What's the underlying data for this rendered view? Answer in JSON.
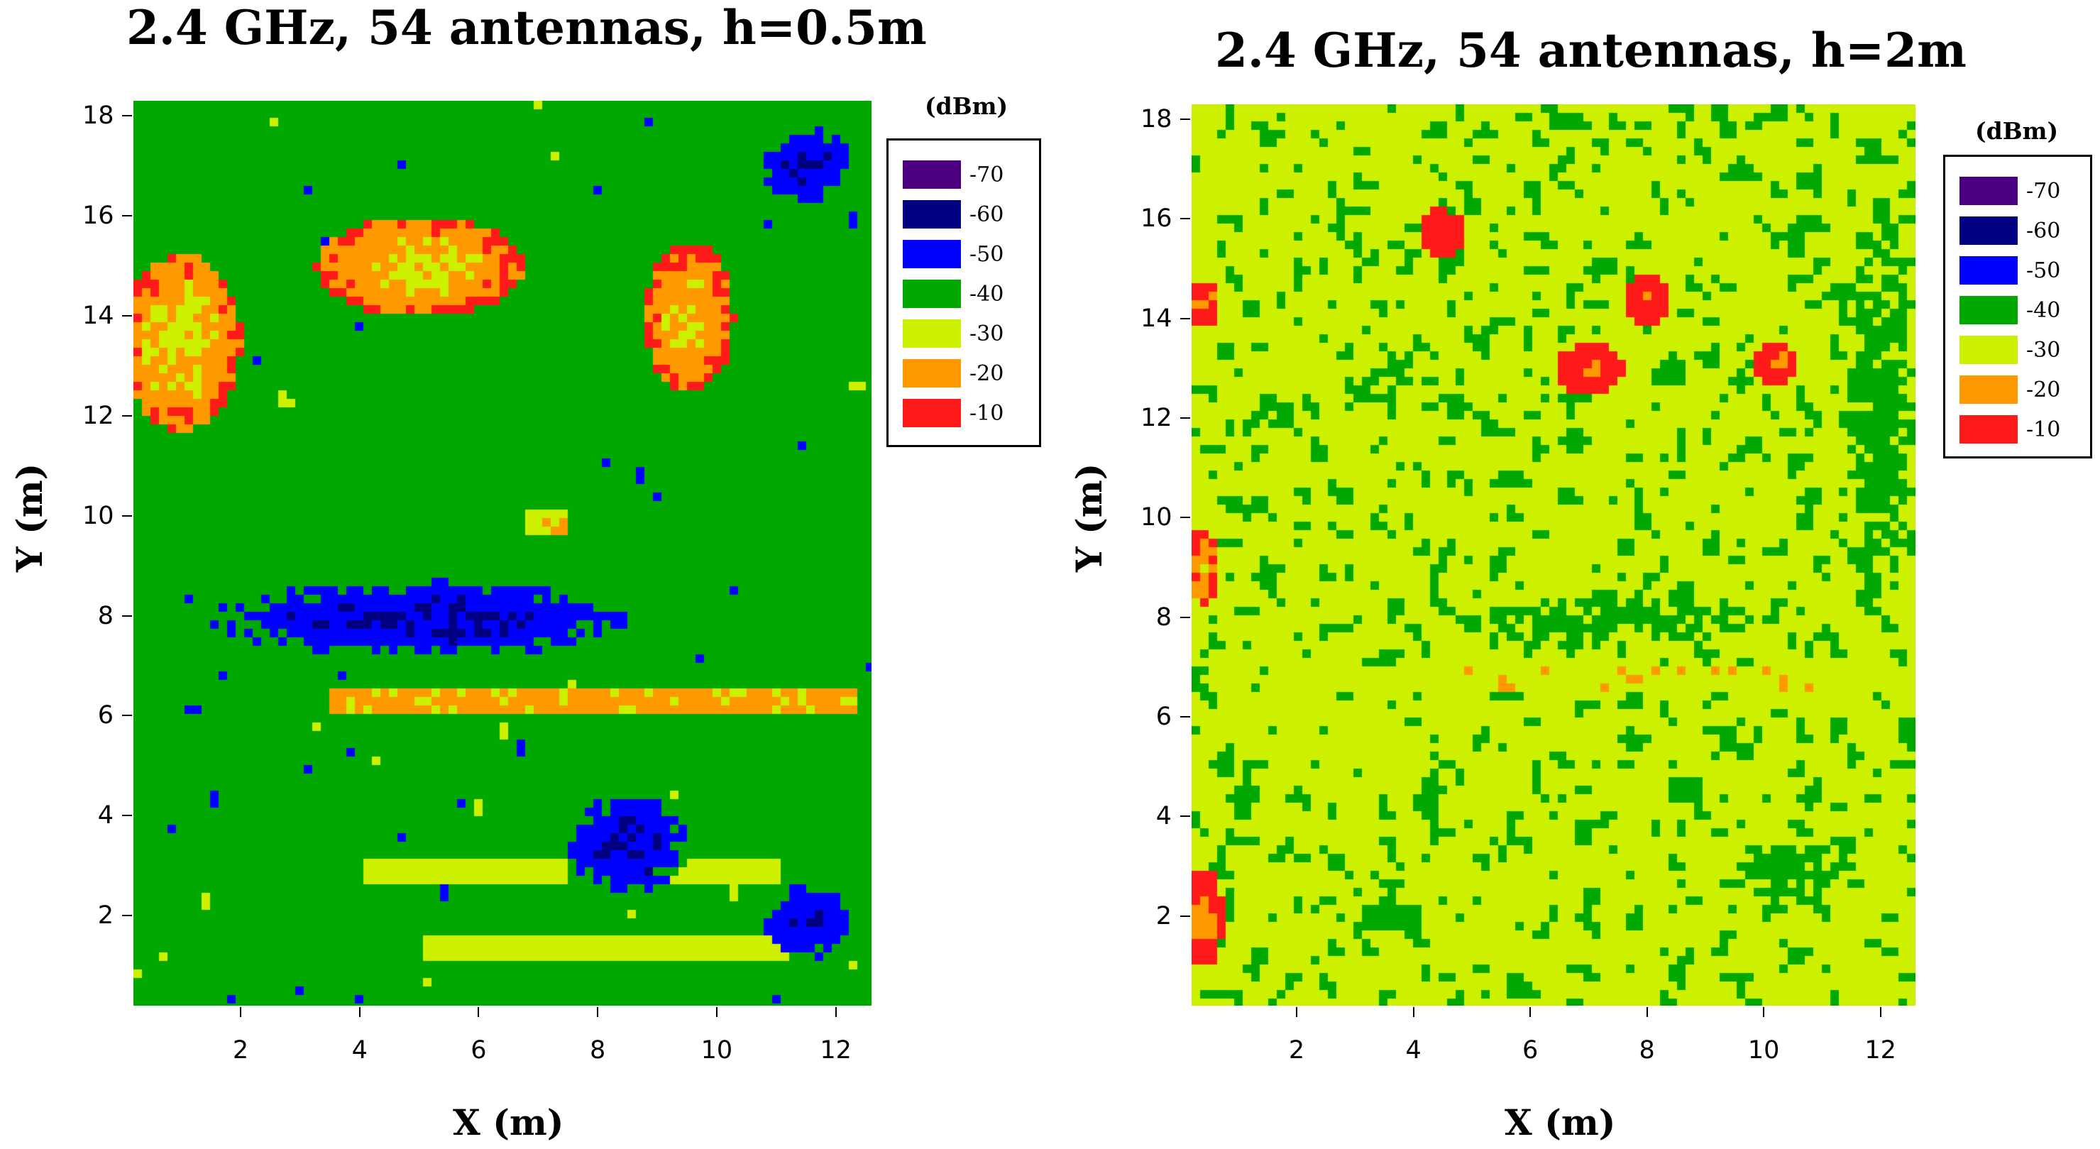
{
  "chart_data": [
    {
      "type": "heatmap",
      "title": "2.4 GHz, 54 antennas, h=0.5m",
      "xlabel": "X (m)",
      "ylabel": "Y (m)",
      "xlim": [
        0.2,
        12.6
      ],
      "ylim": [
        0.2,
        18.3
      ],
      "xticks": [
        "2",
        "4",
        "6",
        "8",
        "10",
        "12"
      ],
      "yticks": [
        "2",
        "4",
        "6",
        "8",
        "10",
        "12",
        "14",
        "16",
        "18"
      ],
      "legend_unit": "(dBm)",
      "legend_levels": [
        {
          "label": "-70",
          "color": "#4b0082"
        },
        {
          "label": "-60",
          "color": "#000080"
        },
        {
          "label": "-50",
          "color": "#0000ff"
        },
        {
          "label": "-40",
          "color": "#00a800"
        },
        {
          "label": "-30",
          "color": "#ccf000"
        },
        {
          "label": "-20",
          "color": "#ff9900"
        },
        {
          "label": "-10",
          "color": "#ff1a1a"
        }
      ],
      "field_description_dbm": {
        "base": -40,
        "hot_lines": [
          {
            "y": 6.4,
            "x_range": [
              3.5,
              12.3
            ],
            "peak": -22
          },
          {
            "y": 3.0,
            "x_range": [
              4.0,
              7.5
            ],
            "peak": -30
          },
          {
            "y": 3.0,
            "x_range": [
              9.0,
              11.0
            ],
            "peak": -30
          },
          {
            "y": 1.4,
            "x_range": [
              5.0,
              11.8
            ],
            "peak": -30
          },
          {
            "y": 10.0,
            "x_range": [
              6.8,
              7.4
            ],
            "peak": -28
          }
        ],
        "hot_regions": [
          {
            "x": 1.0,
            "y": 13.5,
            "w": 2.0,
            "h": 3.5,
            "peak": -28
          },
          {
            "x": 5.0,
            "y": 15.0,
            "w": 3.5,
            "h": 2.0,
            "peak": -27
          },
          {
            "x": 9.5,
            "y": 14.0,
            "w": 1.5,
            "h": 3.0,
            "peak": -26
          }
        ],
        "cold_regions": [
          {
            "x": 5.0,
            "y": 8.0,
            "w": 7.0,
            "h": 1.5,
            "low": -55
          },
          {
            "x": 8.5,
            "y": 3.5,
            "w": 2.0,
            "h": 2.0,
            "low": -55
          },
          {
            "x": 11.5,
            "y": 2.0,
            "w": 1.5,
            "h": 1.5,
            "low": -55
          },
          {
            "x": 11.5,
            "y": 17.0,
            "w": 1.5,
            "h": 1.5,
            "low": -55
          }
        ]
      }
    },
    {
      "type": "heatmap",
      "title": "2.4 GHz, 54 antennas, h=2m",
      "xlabel": "X (m)",
      "ylabel": "Y (m)",
      "xlim": [
        0.2,
        12.6
      ],
      "ylim": [
        0.2,
        18.3
      ],
      "xticks": [
        "2",
        "4",
        "6",
        "8",
        "10",
        "12"
      ],
      "yticks": [
        "2",
        "4",
        "6",
        "8",
        "10",
        "12",
        "14",
        "16",
        "18"
      ],
      "legend_unit": "(dBm)",
      "legend_levels": [
        {
          "label": "-70",
          "color": "#4b0082"
        },
        {
          "label": "-60",
          "color": "#000080"
        },
        {
          "label": "-50",
          "color": "#0000ff"
        },
        {
          "label": "-40",
          "color": "#00a800"
        },
        {
          "label": "-30",
          "color": "#ccf000"
        },
        {
          "label": "-20",
          "color": "#ff9900"
        },
        {
          "label": "-10",
          "color": "#ff1a1a"
        }
      ],
      "field_description_dbm": {
        "base": -33,
        "hot_lines": [
          {
            "y": 6.8,
            "x_range": [
              2.0,
              12.0
            ],
            "peak": -29
          }
        ],
        "hot_regions": [
          {
            "x": 4.5,
            "y": 15.7,
            "w": 0.8,
            "h": 1.0,
            "peak": -12
          },
          {
            "x": 7.0,
            "y": 13.0,
            "w": 1.2,
            "h": 1.0,
            "peak": -14
          },
          {
            "x": 8.0,
            "y": 14.4,
            "w": 0.8,
            "h": 1.0,
            "peak": -13
          },
          {
            "x": 10.2,
            "y": 13.1,
            "w": 0.8,
            "h": 0.8,
            "peak": -18
          },
          {
            "x": 0.4,
            "y": 14.3,
            "w": 0.6,
            "h": 1.0,
            "peak": -18
          },
          {
            "x": 0.4,
            "y": 2.0,
            "w": 0.7,
            "h": 2.0,
            "peak": -20
          },
          {
            "x": 0.4,
            "y": 9.0,
            "w": 0.6,
            "h": 1.5,
            "peak": -22
          }
        ],
        "cold_regions": [
          {
            "x": 12.0,
            "y": 12.0,
            "w": 1.5,
            "h": 10.0,
            "low": -40
          },
          {
            "x": 7.5,
            "y": 8.0,
            "w": 6.0,
            "h": 1.5,
            "low": -39
          },
          {
            "x": 10.5,
            "y": 3.0,
            "w": 3.0,
            "h": 2.0,
            "low": -39
          }
        ]
      }
    }
  ]
}
